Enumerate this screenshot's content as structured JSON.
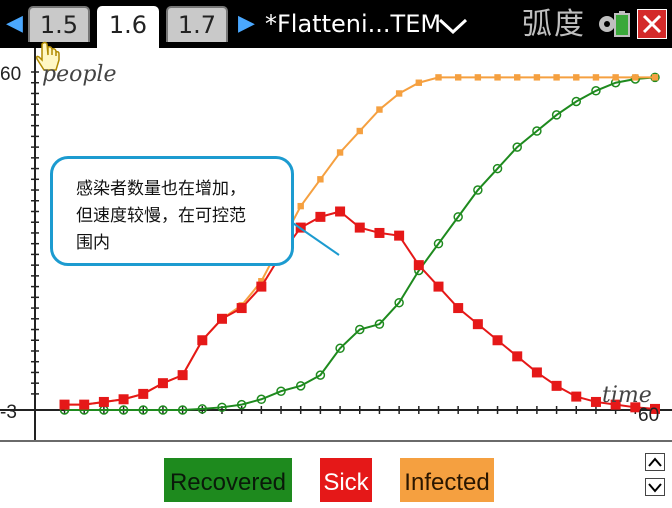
{
  "toolbar": {
    "tabs": [
      {
        "label": "1.5",
        "active": false
      },
      {
        "label": "1.6",
        "active": true
      },
      {
        "label": "1.7",
        "active": false
      }
    ],
    "document_title": "*Flatteni...TEM",
    "right_label": "弧度"
  },
  "callout": {
    "line1": "感染者数量也在增加，",
    "line2": "但速度较慢，在可控范",
    "line3": "围内"
  },
  "chart_data": {
    "type": "scatter",
    "xlabel": "time",
    "ylabel": "people",
    "xlim": [
      -3,
      60
    ],
    "ylim": [
      -3,
      60
    ],
    "tick_labels": {
      "y_top": "60",
      "x_right": "60",
      "origin": "-3"
    },
    "series": [
      {
        "name": "Recovered",
        "color": "#1e8a1e",
        "x": [
          0,
          2,
          4,
          6,
          8,
          10,
          12,
          14,
          16,
          18,
          20,
          22,
          24,
          26,
          28,
          30,
          32,
          34,
          36,
          38,
          40,
          42,
          44,
          46,
          48,
          50,
          52,
          54,
          56,
          58,
          60
        ],
        "y": [
          -3,
          -3,
          -3,
          -3,
          -3,
          -3,
          -3,
          -2.8,
          -2.5,
          -2,
          -1,
          0.5,
          1.5,
          3.5,
          8.5,
          12,
          13,
          17,
          23,
          28,
          33,
          38,
          42,
          46,
          49,
          52,
          54.5,
          56.5,
          58,
          58.7,
          59
        ]
      },
      {
        "name": "Sick",
        "color": "#e51818",
        "x": [
          0,
          2,
          4,
          6,
          8,
          10,
          12,
          14,
          16,
          18,
          20,
          22,
          24,
          26,
          28,
          30,
          32,
          34,
          36,
          38,
          40,
          42,
          44,
          46,
          48,
          50,
          52,
          54,
          56,
          58,
          60
        ],
        "y": [
          -2,
          -2,
          -1.5,
          -1,
          0,
          2,
          3.5,
          10,
          14,
          16,
          20,
          26,
          31,
          33,
          34,
          31,
          30,
          29.5,
          24,
          20,
          16,
          13,
          10,
          7,
          4,
          1.5,
          -0.5,
          -1.5,
          -2,
          -2.5,
          -2.8
        ]
      },
      {
        "name": "Infected",
        "color": "#f5a040",
        "x": [
          0,
          2,
          4,
          6,
          8,
          10,
          12,
          14,
          16,
          18,
          20,
          22,
          24,
          26,
          28,
          30,
          32,
          34,
          36,
          38,
          40,
          42,
          44,
          46,
          48,
          50,
          52,
          54,
          56,
          58,
          60
        ],
        "y": [
          -2,
          -2,
          -1.5,
          -1,
          0,
          2,
          3.5,
          10,
          14,
          16.5,
          21,
          28,
          35,
          40,
          45,
          49,
          53,
          56,
          58,
          59,
          59,
          59,
          59,
          59,
          59,
          59,
          59,
          59,
          59,
          59,
          59
        ]
      }
    ],
    "grid": false,
    "legend": "bottom"
  }
}
